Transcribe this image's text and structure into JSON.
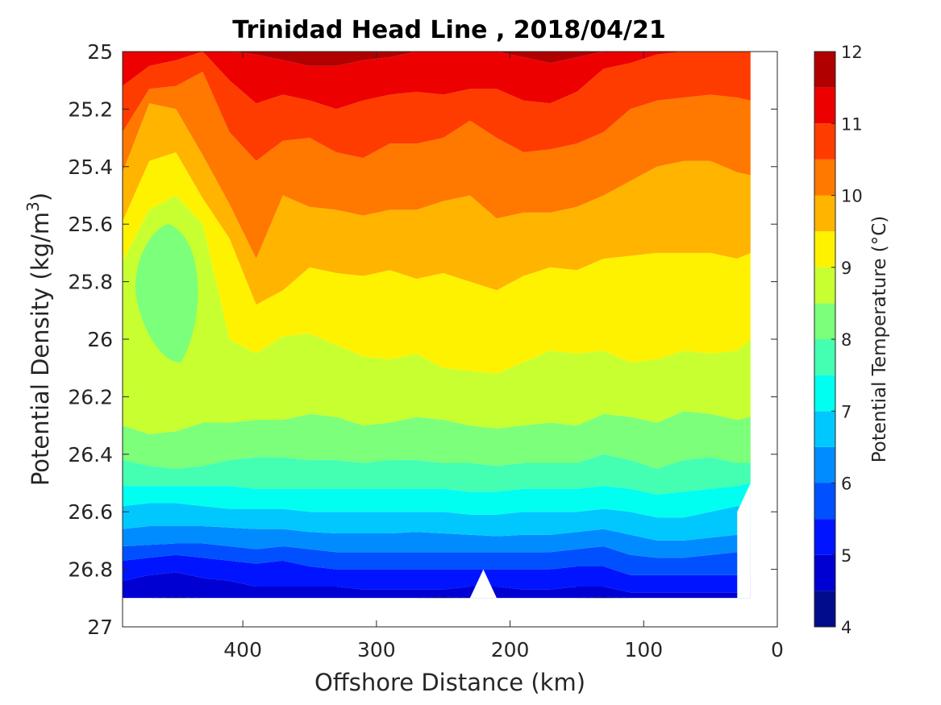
{
  "chart_data": {
    "type": "contourf",
    "title": "Trinidad Head Line , 2018/04/21",
    "xlabel": "Offshore Distance (km)",
    "ylabel_main": "Potential Density (kg/m",
    "ylabel_sup": "3",
    "ylabel_tail": ")",
    "xlim": [
      490,
      0
    ],
    "ylim": [
      25,
      27
    ],
    "x_reversed": true,
    "y_reversed": true,
    "xticks": [
      400,
      300,
      200,
      100,
      0
    ],
    "xtick_labels": [
      "400",
      "300",
      "200",
      "100",
      "0"
    ],
    "yticks": [
      25,
      25.2,
      25.4,
      25.6,
      25.8,
      26,
      26.2,
      26.4,
      26.6,
      26.8,
      27
    ],
    "ytick_labels": [
      "25",
      "25.2",
      "25.4",
      "25.6",
      "25.8",
      "26",
      "26.2",
      "26.4",
      "26.6",
      "26.8",
      "27"
    ],
    "colorbar": {
      "label": "Potential Temperature (°C)",
      "min": 4,
      "max": 12,
      "step": 0.5,
      "ticks": [
        4,
        5,
        6,
        7,
        8,
        9,
        10,
        11,
        12
      ],
      "tick_labels": [
        "4",
        "5",
        "6",
        "7",
        "8",
        "9",
        "10",
        "11",
        "12"
      ],
      "colors": [
        "#000c8b",
        "#0000d2",
        "#0014ff",
        "#0050ff",
        "#008cff",
        "#00c8ff",
        "#00fff0",
        "#44ffb2",
        "#7cff7a",
        "#c8ff30",
        "#fff200",
        "#ffb400",
        "#ff7800",
        "#ff3c00",
        "#ed0000",
        "#b00000"
      ]
    },
    "data_extent": {
      "x_min": 20,
      "x_max": 490,
      "density_bottom": 26.9
    },
    "x": [
      490,
      470,
      450,
      430,
      410,
      390,
      370,
      350,
      330,
      310,
      290,
      270,
      250,
      230,
      210,
      190,
      170,
      150,
      130,
      110,
      90,
      70,
      50,
      30,
      20
    ],
    "contours": [
      {
        "level": 4.5,
        "density": [
          26.9,
          26.9,
          26.895,
          26.9,
          26.9,
          26.9,
          26.9,
          26.9,
          26.9,
          26.9,
          26.9,
          26.9,
          26.895,
          26.9,
          26.9,
          26.9,
          26.9,
          26.9,
          26.895,
          26.9,
          26.9,
          26.9,
          26.9,
          26.9,
          26.9
        ]
      },
      {
        "level": 5,
        "density": [
          26.84,
          26.82,
          26.81,
          26.83,
          26.84,
          26.86,
          26.86,
          26.86,
          26.86,
          26.87,
          26.87,
          26.87,
          26.87,
          26.86,
          26.86,
          26.87,
          26.87,
          26.86,
          26.86,
          26.88,
          26.88,
          26.88,
          26.88,
          26.88,
          26.88
        ]
      },
      {
        "level": 5.5,
        "density": [
          26.77,
          26.76,
          26.75,
          26.76,
          26.77,
          26.78,
          26.77,
          26.79,
          26.8,
          26.8,
          26.8,
          26.8,
          26.8,
          26.8,
          26.8,
          26.8,
          26.8,
          26.79,
          26.79,
          26.82,
          26.82,
          26.82,
          26.82,
          26.82,
          26.82
        ]
      },
      {
        "level": 6,
        "density": [
          26.72,
          26.715,
          26.71,
          26.71,
          26.72,
          26.73,
          26.72,
          26.73,
          26.74,
          26.74,
          26.74,
          26.74,
          26.74,
          26.74,
          26.74,
          26.74,
          26.74,
          26.73,
          26.72,
          26.75,
          26.76,
          26.76,
          26.75,
          26.74,
          26.74
        ]
      },
      {
        "level": 6.5,
        "density": [
          26.66,
          26.65,
          26.65,
          26.65,
          26.655,
          26.66,
          26.66,
          26.67,
          26.675,
          26.675,
          26.675,
          26.67,
          26.675,
          26.68,
          26.685,
          26.68,
          26.68,
          26.67,
          26.66,
          26.68,
          26.7,
          26.7,
          26.69,
          26.68,
          26.67
        ]
      },
      {
        "level": 7,
        "density": [
          26.58,
          26.57,
          26.57,
          26.58,
          26.59,
          26.59,
          26.59,
          26.6,
          26.6,
          26.6,
          26.6,
          26.6,
          26.6,
          26.61,
          26.61,
          26.6,
          26.6,
          26.6,
          26.59,
          26.6,
          26.62,
          26.62,
          26.6,
          26.58,
          26.58
        ]
      },
      {
        "level": 7.5,
        "density": [
          26.51,
          26.51,
          26.51,
          26.51,
          26.51,
          26.52,
          26.52,
          26.52,
          26.52,
          26.52,
          26.52,
          26.52,
          26.52,
          26.53,
          26.53,
          26.52,
          26.52,
          26.52,
          26.51,
          26.52,
          26.54,
          26.53,
          26.52,
          26.51,
          26.5
        ]
      },
      {
        "level": 8,
        "density": [
          26.42,
          26.44,
          26.45,
          26.44,
          26.42,
          26.41,
          26.41,
          26.42,
          26.42,
          26.43,
          26.42,
          26.42,
          26.43,
          26.43,
          26.44,
          26.43,
          26.43,
          26.43,
          26.4,
          26.42,
          26.45,
          26.42,
          26.41,
          26.43,
          26.43
        ]
      },
      {
        "level": 8.5,
        "density": [
          26.3,
          26.33,
          26.32,
          26.29,
          26.29,
          26.28,
          26.28,
          26.26,
          26.27,
          26.3,
          26.29,
          26.27,
          26.28,
          26.3,
          26.31,
          26.3,
          26.29,
          26.3,
          26.26,
          26.27,
          26.29,
          26.25,
          26.26,
          26.28,
          26.27
        ]
      },
      {
        "level": 9,
        "density": [
          25.73,
          25.55,
          25.5,
          25.6,
          26.0,
          26.05,
          25.99,
          25.98,
          26.02,
          26.06,
          26.07,
          26.05,
          26.1,
          26.11,
          26.12,
          26.08,
          26.04,
          26.05,
          26.04,
          26.08,
          26.07,
          26.04,
          26.05,
          26.04,
          26.0
        ]
      },
      {
        "level": 9.5,
        "density": [
          25.59,
          25.38,
          25.35,
          25.51,
          25.65,
          25.88,
          25.83,
          25.75,
          25.77,
          25.78,
          25.76,
          25.79,
          25.77,
          25.8,
          25.83,
          25.78,
          25.75,
          25.76,
          25.72,
          25.71,
          25.7,
          25.7,
          25.7,
          25.72,
          25.7
        ]
      },
      {
        "level": 10,
        "density": [
          25.42,
          25.18,
          25.2,
          25.36,
          25.53,
          25.72,
          25.5,
          25.54,
          25.55,
          25.57,
          25.55,
          25.55,
          25.52,
          25.5,
          25.58,
          25.56,
          25.56,
          25.54,
          25.5,
          25.45,
          25.4,
          25.38,
          25.38,
          25.42,
          25.43
        ]
      },
      {
        "level": 10.5,
        "density": [
          25.28,
          25.13,
          25.12,
          25.07,
          25.28,
          25.38,
          25.31,
          25.3,
          25.35,
          25.37,
          25.32,
          25.32,
          25.3,
          25.24,
          25.3,
          25.35,
          25.34,
          25.32,
          25.28,
          25.2,
          25.17,
          25.16,
          25.15,
          25.16,
          25.17
        ]
      },
      {
        "level": 11,
        "density": [
          25.12,
          25.05,
          25.03,
          25.0,
          25.1,
          25.18,
          25.15,
          25.17,
          25.2,
          25.17,
          25.15,
          25.14,
          25.15,
          25.13,
          25.13,
          25.17,
          25.18,
          25.14,
          25.06,
          25.04,
          25.01,
          25.0,
          25.0,
          25.0,
          25.0
        ]
      },
      {
        "level": 11.5,
        "density": [
          25.0,
          25.0,
          25.0,
          25.0,
          25.0,
          25.01,
          25.03,
          25.05,
          25.05,
          25.03,
          25.02,
          25.0,
          25.0,
          25.0,
          25.0,
          25.02,
          25.04,
          25.02,
          25.0,
          25.0,
          25.0,
          25.0,
          25.0,
          25.0,
          25.0
        ]
      }
    ],
    "cold_core": {
      "level": 8.5,
      "center_x": 455,
      "center_density": 25.85,
      "half_width_km": 22,
      "density_top": 25.6,
      "density_bottom": 26.08
    }
  }
}
